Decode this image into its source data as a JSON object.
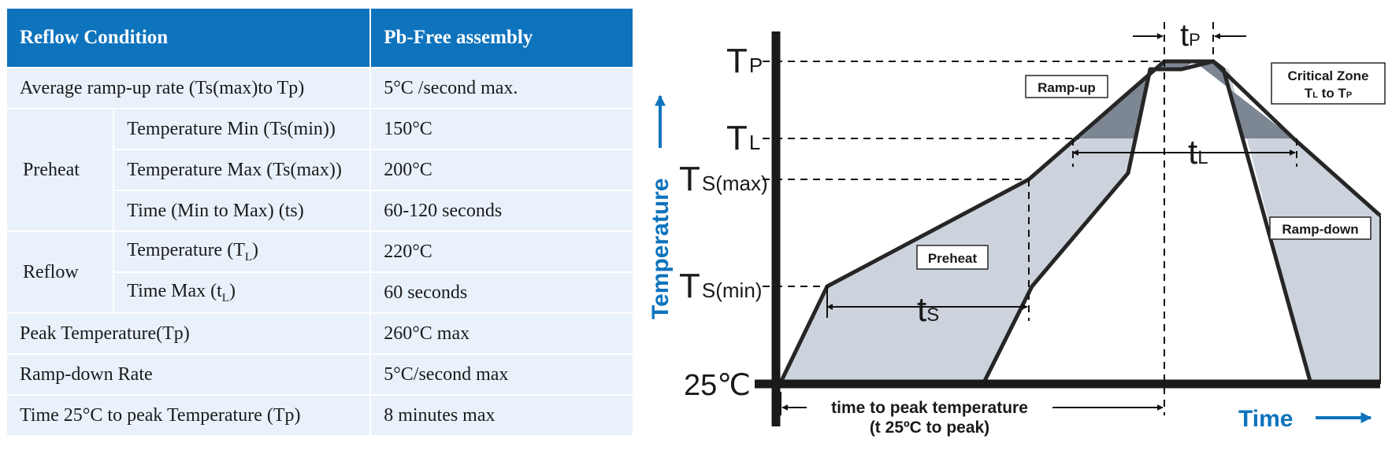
{
  "table": {
    "header": {
      "condition": "Reflow Condition",
      "assembly": "Pb-Free assembly"
    },
    "rows": {
      "ramp_up": {
        "label": "Average ramp-up rate (Ts(max)to Tp)",
        "value": "5°C /second max."
      },
      "preheat": {
        "group": "Preheat",
        "temp_min": {
          "label": "Temperature Min (Ts(min))",
          "value": "150°C"
        },
        "temp_max": {
          "label": "Temperature Max (Ts(max))",
          "value": "200°C"
        },
        "time": {
          "label": "Time (Min to Max) (ts)",
          "value": "60-120 seconds"
        }
      },
      "reflow": {
        "group": "Reflow",
        "temp": {
          "label": "Temperature (T",
          "sub": "L",
          "close": ")",
          "value": "220°C"
        },
        "time": {
          "label": "Time Max (t",
          "sub": "L",
          "close": ")",
          "value": "60 seconds"
        }
      },
      "peak": {
        "label": "Peak Temperature(Tp)",
        "value": "260°C max"
      },
      "ramp_down": {
        "label": "Ramp-down Rate",
        "value": "5°C/second max"
      },
      "time_to_peak": {
        "label": "Time 25°C to peak Temperature (Tp)",
        "value": "8 minutes max"
      }
    }
  },
  "diagram": {
    "y_axis_title": "Temperature",
    "x_axis_title": "Time",
    "levels": {
      "tp": {
        "main": "T",
        "sub": "P"
      },
      "tl": {
        "main": "T",
        "sub": "L"
      },
      "ts_max": {
        "main": "T",
        "sub": "S(max)"
      },
      "ts_min": {
        "main": "T",
        "sub": "S(min)"
      },
      "room": "25℃"
    },
    "spans": {
      "tp": {
        "main": "t",
        "sub": "P"
      },
      "tl": {
        "main": "t",
        "sub": "L"
      },
      "ts": {
        "main": "t",
        "sub": "S"
      }
    },
    "zones": {
      "ramp_up": "Ramp-up",
      "preheat": "Preheat",
      "ramp_down": "Ramp-down",
      "critical_line1": "Critical Zone",
      "critical_line2": {
        "a": "T",
        "a_sub": "L",
        "mid": " to T",
        "b_sub": "P"
      }
    },
    "time_to_peak": {
      "line1": "time to peak temperature",
      "line2": "(t 25ºC to peak)"
    },
    "colors": {
      "accent": "#0e73bd",
      "fill": "#cdd3dc",
      "critical": "#7d8693",
      "line": "#262626"
    }
  }
}
